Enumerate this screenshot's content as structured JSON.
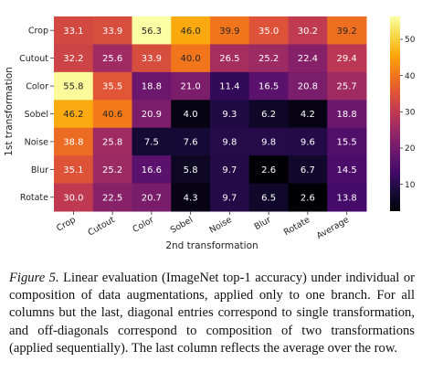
{
  "chart_data": {
    "type": "heatmap",
    "xlabel": "2nd transformation",
    "ylabel": "1st transformation",
    "x_categories": [
      "Crop",
      "Cutout",
      "Color",
      "Sobel",
      "Noise",
      "Blur",
      "Rotate",
      "Average"
    ],
    "y_categories": [
      "Crop",
      "Cutout",
      "Color",
      "Sobel",
      "Noise",
      "Blur",
      "Rotate"
    ],
    "values": [
      [
        33.1,
        33.9,
        56.3,
        46.0,
        39.9,
        35.0,
        30.2,
        39.2
      ],
      [
        32.2,
        25.6,
        33.9,
        40.0,
        26.5,
        25.2,
        22.4,
        29.4
      ],
      [
        55.8,
        35.5,
        18.8,
        21.0,
        11.4,
        16.5,
        20.8,
        25.7
      ],
      [
        46.2,
        40.6,
        20.9,
        4.0,
        9.3,
        6.2,
        4.2,
        18.8
      ],
      [
        38.8,
        25.8,
        7.5,
        7.6,
        9.8,
        9.8,
        9.6,
        15.5
      ],
      [
        35.1,
        25.2,
        16.6,
        5.8,
        9.7,
        2.6,
        6.7,
        14.5
      ],
      [
        30.0,
        22.5,
        20.7,
        4.3,
        9.7,
        6.5,
        2.6,
        13.8
      ]
    ],
    "value_format": "0.1f",
    "colormap": "inferno",
    "vmin": 2.6,
    "vmax": 56.3,
    "colorbar_ticks": [
      10,
      20,
      30,
      40,
      50
    ]
  },
  "caption": {
    "label": "Figure 5.",
    "text": " Linear evaluation (ImageNet top-1 accuracy) under individual or composition of data augmentations, applied only to one branch. For all columns but the last, diagonal entries correspond to single transformation, and off-diagonals correspond to composition of two transformations (applied sequentially). The last column reflects the average over the row."
  }
}
